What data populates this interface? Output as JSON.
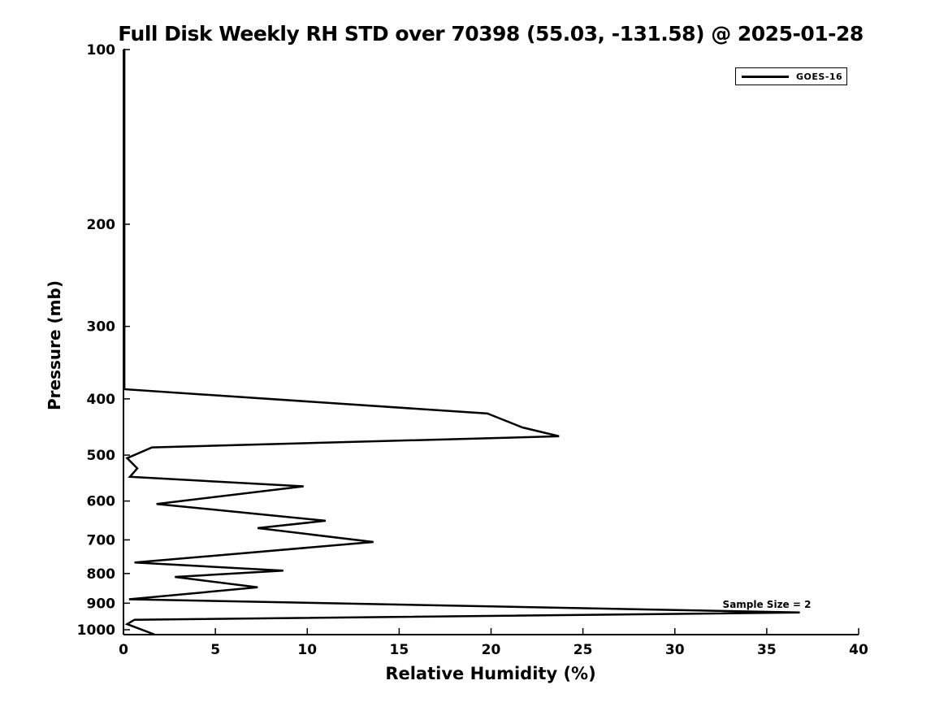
{
  "chart_data": {
    "type": "line",
    "title": "Full Disk Weekly RH STD over 70398 (55.03, -131.58) @ 2025-01-28",
    "xlabel": "Relative Humidity (%)",
    "ylabel": "Pressure (mb)",
    "xlim": [
      0,
      40
    ],
    "ylim": [
      100,
      1021
    ],
    "y_scale": "log",
    "y_inverted": true,
    "grid": false,
    "x_ticks": [
      0,
      5,
      10,
      15,
      20,
      25,
      30,
      35,
      40
    ],
    "y_ticks": [
      100,
      200,
      300,
      400,
      500,
      600,
      700,
      800,
      900,
      1000
    ],
    "line_color": "#000000",
    "background_color": "#ffffff",
    "legend_position": "top-right",
    "series": [
      {
        "name": "GOES-16",
        "color": "#000000",
        "points_rh_pressure": [
          [
            0.05,
            100
          ],
          [
            0.05,
            385
          ],
          [
            19.8,
            424
          ],
          [
            21.7,
            448
          ],
          [
            23.7,
            464
          ],
          [
            1.55,
            485
          ],
          [
            0.2,
            506
          ],
          [
            0.75,
            527
          ],
          [
            0.35,
            545
          ],
          [
            9.8,
            566
          ],
          [
            1.8,
            607
          ],
          [
            11.0,
            649
          ],
          [
            7.3,
            668
          ],
          [
            13.6,
            706
          ],
          [
            0.6,
            766
          ],
          [
            8.7,
            791
          ],
          [
            2.8,
            811
          ],
          [
            7.3,
            845
          ],
          [
            0.3,
            886
          ],
          [
            36.8,
            934
          ],
          [
            0.6,
            961
          ],
          [
            0.2,
            978
          ],
          [
            1.65,
            1018
          ]
        ]
      }
    ],
    "annotation": {
      "text": "Sample Size = 2",
      "anchor_rh": 35,
      "anchor_pressure_mb": 915
    }
  }
}
